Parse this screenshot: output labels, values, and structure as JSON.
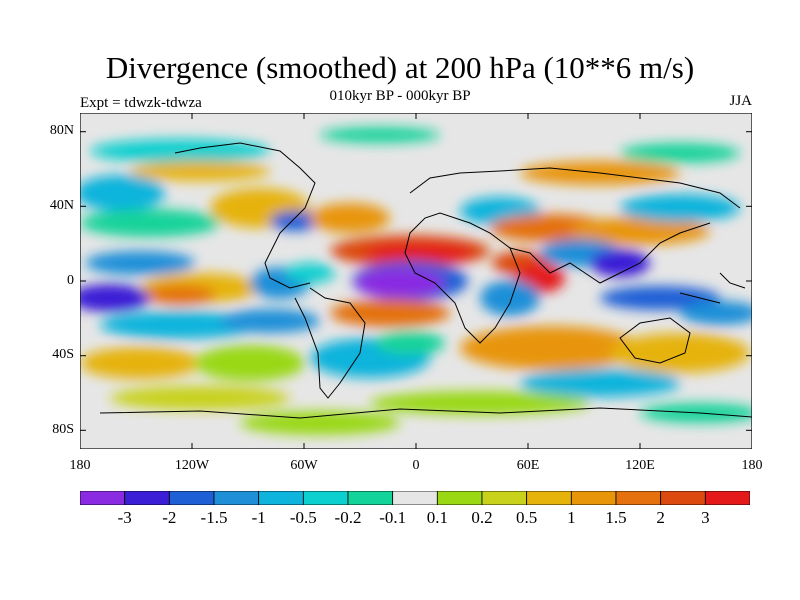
{
  "title": "Divergence (smoothed) at 200 hPa (10**6 m/s)",
  "subtitle": "010kyr BP - 000kyr BP",
  "experiment": "Expt = tdwzk-tdwza",
  "season": "JJA",
  "map": {
    "lon_ticks": [
      "180",
      "120W",
      "60W",
      "0",
      "60E",
      "120E",
      "180"
    ],
    "lat_ticks": [
      "80N",
      "40N",
      "0",
      "40S",
      "80S"
    ],
    "lat_values": [
      80,
      40,
      0,
      -40,
      -80
    ],
    "lon_values": [
      -180,
      -120,
      -60,
      0,
      60,
      120,
      180
    ]
  },
  "colorbar": {
    "colors": [
      "#8a2be2",
      "#3a1fd6",
      "#1e5fd6",
      "#1f8fd8",
      "#0fb4dc",
      "#0ccfcf",
      "#12d39a",
      "#e6e6e6",
      "#9ad814",
      "#c8d21a",
      "#e6b30a",
      "#e8950a",
      "#e4710e",
      "#dc4a10",
      "#e41a1a"
    ],
    "labels": [
      "-3",
      "-2",
      "-1.5",
      "-1",
      "-0.5",
      "-0.2",
      "-0.1",
      "0.1",
      "0.2",
      "0.5",
      "1",
      "1.5",
      "2",
      "3"
    ]
  }
}
